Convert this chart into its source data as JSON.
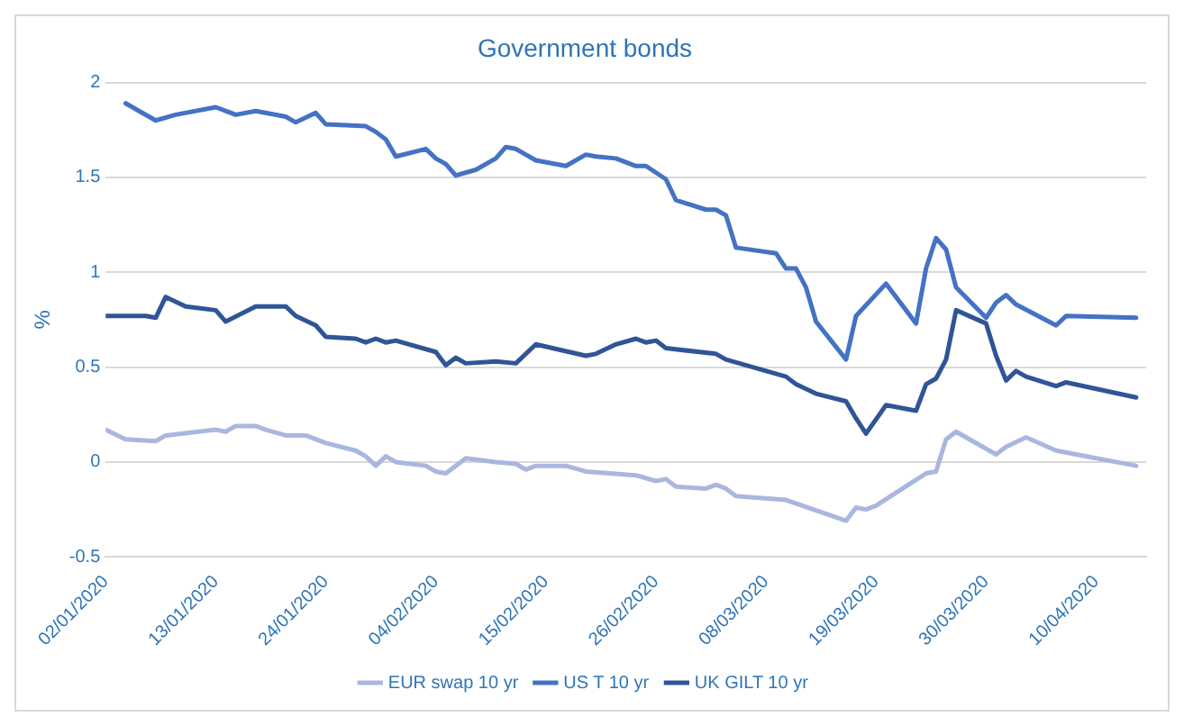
{
  "chart_data": {
    "type": "line",
    "title": "Government bonds",
    "ylabel": "%",
    "xlim": [
      "2020-01-02",
      "2020-04-15"
    ],
    "xticks": [
      {
        "value": "2020-01-02",
        "label": "02/01/2020"
      },
      {
        "value": "2020-01-13",
        "label": "13/01/2020"
      },
      {
        "value": "2020-01-24",
        "label": "24/01/2020"
      },
      {
        "value": "2020-02-04",
        "label": "04/02/2020"
      },
      {
        "value": "2020-02-15",
        "label": "15/02/2020"
      },
      {
        "value": "2020-02-26",
        "label": "26/02/2020"
      },
      {
        "value": "2020-03-08",
        "label": "08/03/2020"
      },
      {
        "value": "2020-03-19",
        "label": "19/03/2020"
      },
      {
        "value": "2020-03-30",
        "label": "30/03/2020"
      },
      {
        "value": "2020-04-10",
        "label": "10/04/2020"
      }
    ],
    "ylim": [
      -0.5,
      2
    ],
    "yticks": [
      -0.5,
      0,
      0.5,
      1,
      1.5,
      2
    ],
    "grid": "y",
    "legend": "bottom",
    "marker": "none",
    "line_style": "solid",
    "series": [
      {
        "name": "EUR swap 10 yr",
        "color": "#a9b7e0",
        "x": [
          "2020-01-02",
          "2020-01-04",
          "2020-01-07",
          "2020-01-08",
          "2020-01-13",
          "2020-01-14",
          "2020-01-15",
          "2020-01-17",
          "2020-01-18",
          "2020-01-20",
          "2020-01-22",
          "2020-01-23",
          "2020-01-24",
          "2020-01-27",
          "2020-01-28",
          "2020-01-29",
          "2020-01-30",
          "2020-01-31",
          "2020-02-03",
          "2020-02-04",
          "2020-02-05",
          "2020-02-07",
          "2020-02-10",
          "2020-02-12",
          "2020-02-13",
          "2020-02-14",
          "2020-02-17",
          "2020-02-19",
          "2020-02-24",
          "2020-02-26",
          "2020-02-27",
          "2020-02-28",
          "2020-03-02",
          "2020-03-03",
          "2020-03-04",
          "2020-03-05",
          "2020-03-10",
          "2020-03-16",
          "2020-03-17",
          "2020-03-18",
          "2020-03-19",
          "2020-03-24",
          "2020-03-25",
          "2020-03-26",
          "2020-03-27",
          "2020-03-31",
          "2020-04-01",
          "2020-04-03",
          "2020-04-06",
          "2020-04-14"
        ],
        "values": [
          0.17,
          0.12,
          0.11,
          0.14,
          0.17,
          0.16,
          0.19,
          0.19,
          0.17,
          0.14,
          0.14,
          0.12,
          0.1,
          0.06,
          0.03,
          -0.02,
          0.03,
          0.0,
          -0.02,
          -0.05,
          -0.06,
          0.02,
          0.0,
          -0.01,
          -0.04,
          -0.02,
          -0.02,
          -0.05,
          -0.07,
          -0.1,
          -0.09,
          -0.13,
          -0.14,
          -0.12,
          -0.14,
          -0.18,
          -0.2,
          -0.31,
          -0.24,
          -0.25,
          -0.23,
          -0.06,
          -0.05,
          0.12,
          0.16,
          0.04,
          0.08,
          0.13,
          0.06,
          -0.02
        ]
      },
      {
        "name": "US T 10 yr",
        "color": "#4472c4",
        "x": [
          "2020-01-04",
          "2020-01-07",
          "2020-01-09",
          "2020-01-13",
          "2020-01-15",
          "2020-01-17",
          "2020-01-20",
          "2020-01-21",
          "2020-01-23",
          "2020-01-24",
          "2020-01-28",
          "2020-01-29",
          "2020-01-30",
          "2020-01-31",
          "2020-02-03",
          "2020-02-04",
          "2020-02-05",
          "2020-02-06",
          "2020-02-08",
          "2020-02-10",
          "2020-02-11",
          "2020-02-12",
          "2020-02-14",
          "2020-02-17",
          "2020-02-19",
          "2020-02-20",
          "2020-02-22",
          "2020-02-24",
          "2020-02-25",
          "2020-02-27",
          "2020-02-28",
          "2020-03-02",
          "2020-03-03",
          "2020-03-04",
          "2020-03-05",
          "2020-03-09",
          "2020-03-10",
          "2020-03-11",
          "2020-03-12",
          "2020-03-13",
          "2020-03-16",
          "2020-03-17",
          "2020-03-20",
          "2020-03-23",
          "2020-03-24",
          "2020-03-25",
          "2020-03-26",
          "2020-03-27",
          "2020-03-30",
          "2020-03-31",
          "2020-04-01",
          "2020-04-02",
          "2020-04-06",
          "2020-04-07",
          "2020-04-14"
        ],
        "values": [
          1.89,
          1.8,
          1.83,
          1.87,
          1.83,
          1.85,
          1.82,
          1.79,
          1.84,
          1.78,
          1.77,
          1.74,
          1.7,
          1.61,
          1.65,
          1.6,
          1.57,
          1.51,
          1.54,
          1.6,
          1.66,
          1.65,
          1.59,
          1.56,
          1.62,
          1.61,
          1.6,
          1.56,
          1.56,
          1.49,
          1.38,
          1.33,
          1.33,
          1.3,
          1.13,
          1.1,
          1.02,
          1.02,
          0.92,
          0.74,
          0.54,
          0.77,
          0.94,
          0.73,
          1.02,
          1.18,
          1.12,
          0.92,
          0.76,
          0.84,
          0.88,
          0.83,
          0.72,
          0.77,
          0.76
        ]
      },
      {
        "name": "UK GILT 10 yr",
        "color": "#2f5597",
        "x": [
          "2020-01-02",
          "2020-01-06",
          "2020-01-07",
          "2020-01-08",
          "2020-01-10",
          "2020-01-13",
          "2020-01-14",
          "2020-01-17",
          "2020-01-20",
          "2020-01-21",
          "2020-01-23",
          "2020-01-24",
          "2020-01-27",
          "2020-01-28",
          "2020-01-29",
          "2020-01-30",
          "2020-01-31",
          "2020-02-04",
          "2020-02-05",
          "2020-02-06",
          "2020-02-07",
          "2020-02-10",
          "2020-02-12",
          "2020-02-14",
          "2020-02-19",
          "2020-02-20",
          "2020-02-22",
          "2020-02-24",
          "2020-02-25",
          "2020-02-26",
          "2020-02-27",
          "2020-03-03",
          "2020-03-04",
          "2020-03-10",
          "2020-03-11",
          "2020-03-13",
          "2020-03-16",
          "2020-03-17",
          "2020-03-18",
          "2020-03-20",
          "2020-03-23",
          "2020-03-24",
          "2020-03-25",
          "2020-03-26",
          "2020-03-27",
          "2020-03-30",
          "2020-03-31",
          "2020-04-01",
          "2020-04-02",
          "2020-04-03",
          "2020-04-06",
          "2020-04-07",
          "2020-04-14"
        ],
        "values": [
          0.77,
          0.77,
          0.76,
          0.87,
          0.82,
          0.8,
          0.74,
          0.82,
          0.82,
          0.77,
          0.72,
          0.66,
          0.65,
          0.63,
          0.65,
          0.63,
          0.64,
          0.58,
          0.51,
          0.55,
          0.52,
          0.53,
          0.52,
          0.62,
          0.56,
          0.57,
          0.62,
          0.65,
          0.63,
          0.64,
          0.6,
          0.57,
          0.54,
          0.45,
          0.41,
          0.36,
          0.32,
          0.23,
          0.15,
          0.3,
          0.27,
          0.41,
          0.44,
          0.54,
          0.8,
          0.73,
          0.56,
          0.43,
          0.48,
          0.45,
          0.4,
          0.42,
          0.34
        ]
      }
    ]
  }
}
